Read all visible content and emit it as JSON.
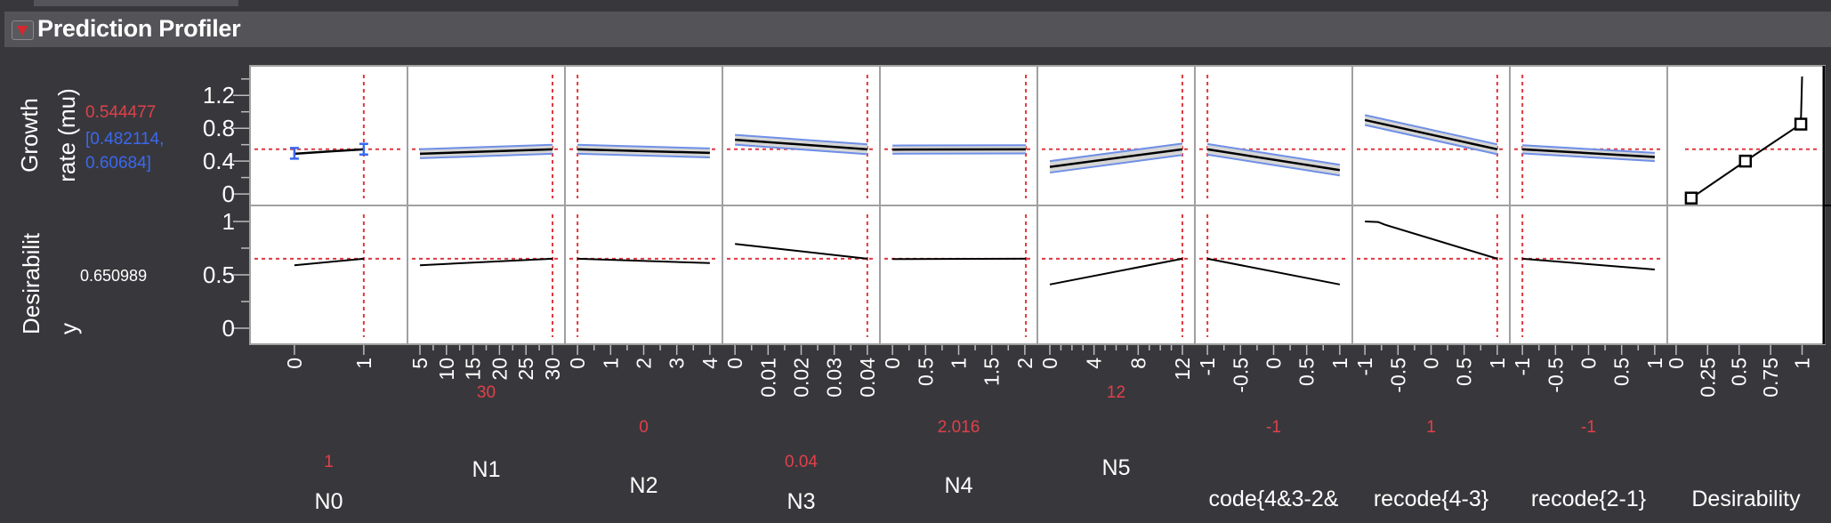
{
  "window": {
    "title": "Prediction Profiler"
  },
  "responses": [
    {
      "label_lines": [
        "Growth",
        "rate (mu)"
      ],
      "value": "0.544477",
      "ci_lines": [
        "[0.482114,",
        "0.60684]"
      ],
      "ylim": [
        -0.14,
        1.56
      ],
      "ticks": [
        0,
        0.4,
        0.8,
        1.2
      ],
      "tick_labels": [
        "0",
        "0.4",
        "0.8",
        "1.2"
      ],
      "minor_ticks": [
        0.2,
        0.6,
        1.0,
        1.4
      ],
      "current": 0.544477
    },
    {
      "label_lines": [
        "Desirabilit",
        "y"
      ],
      "value": "0.650989",
      "ylim": [
        -0.15,
        1.15
      ],
      "ticks": [
        0,
        0.5,
        1
      ],
      "tick_labels": [
        "0",
        "0.5",
        "1"
      ],
      "minor_ticks": [
        0.25,
        0.75
      ],
      "current": 0.650989
    }
  ],
  "colors": {
    "background": "#38383c",
    "header": "#545358",
    "current_line": "#e0383e",
    "ci_line": "#6f8fe8",
    "ci_band": "#d6d6d6",
    "value_red": "#e0404a",
    "ci_blue": "#3a68f0",
    "grid_border": "#a0a0a0"
  },
  "chart_data": {
    "type": "line",
    "title": "Prediction Profiler",
    "factors": [
      {
        "name": "N0",
        "current": 1,
        "current_label": "1",
        "xlim": [
          -0.64,
          1.63
        ],
        "ticks": [
          0,
          1
        ],
        "tick_labels": [
          "0",
          "1"
        ],
        "minor_ticks": [],
        "growth": [
          [
            0,
            0.49
          ],
          [
            1,
            0.544
          ]
        ],
        "error_bars": [
          [
            0,
            0.43,
            0.56
          ],
          [
            1,
            0.48,
            0.61
          ]
        ],
        "desirability": [
          [
            0,
            0.59
          ],
          [
            1,
            0.651
          ]
        ]
      },
      {
        "name": "N1",
        "current": 30,
        "current_label": "30",
        "xlim": [
          2.65,
          32.35
        ],
        "ticks": [
          5,
          10,
          15,
          20,
          25,
          30
        ],
        "tick_labels": [
          "5",
          "10",
          "15",
          "20",
          "25",
          "30"
        ],
        "minor_ticks": [
          7.5,
          12.5,
          17.5,
          22.5,
          27.5
        ],
        "growth": [
          [
            5,
            0.49
          ],
          [
            30,
            0.544
          ]
        ],
        "ci": 0.055,
        "desirability": [
          [
            5,
            0.59
          ],
          [
            30,
            0.651
          ]
        ]
      },
      {
        "name": "N2",
        "current": 0,
        "current_label": "0",
        "xlim": [
          -0.38,
          4.38
        ],
        "ticks": [
          0,
          1,
          2,
          3,
          4
        ],
        "tick_labels": [
          "0",
          "1",
          "2",
          "3",
          "4"
        ],
        "minor_ticks": [
          0.5,
          1.5,
          2.5,
          3.5
        ],
        "growth": [
          [
            0,
            0.544
          ],
          [
            4,
            0.5
          ]
        ],
        "ci": 0.055,
        "desirability": [
          [
            0,
            0.651
          ],
          [
            4,
            0.61
          ]
        ]
      },
      {
        "name": "N3",
        "current": 0.04,
        "current_label": "0.04",
        "xlim": [
          -0.0038,
          0.0438
        ],
        "ticks": [
          0,
          0.01,
          0.02,
          0.03,
          0.04
        ],
        "tick_labels": [
          "0",
          "0.01",
          "0.02",
          "0.03",
          "0.04"
        ],
        "minor_ticks": [
          0.005,
          0.015,
          0.025,
          0.035
        ],
        "growth": [
          [
            0,
            0.66
          ],
          [
            0.04,
            0.544
          ]
        ],
        "ci": 0.06,
        "desirability": [
          [
            0,
            0.79
          ],
          [
            0.04,
            0.651
          ]
        ]
      },
      {
        "name": "N4",
        "current": 2.016,
        "current_label": "2.016",
        "xlim": [
          -0.19,
          2.19
        ],
        "ticks": [
          0,
          0.5,
          1,
          1.5,
          2
        ],
        "tick_labels": [
          "0",
          "0.5",
          "1",
          "1.5",
          "2"
        ],
        "minor_ticks": [
          0.25,
          0.75,
          1.25,
          1.75
        ],
        "growth": [
          [
            0,
            0.54
          ],
          [
            2.016,
            0.544
          ]
        ],
        "ci": 0.05,
        "desirability": [
          [
            0,
            0.648
          ],
          [
            2.016,
            0.651
          ]
        ]
      },
      {
        "name": "N5",
        "current": 12,
        "current_label": "12",
        "xlim": [
          -1.13,
          13.13
        ],
        "ticks": [
          0,
          4,
          8,
          12
        ],
        "tick_labels": [
          "0",
          "4",
          "8",
          "12"
        ],
        "minor_ticks": [
          1,
          2,
          3,
          5,
          6,
          7,
          9,
          10,
          11
        ],
        "growth": [
          [
            0,
            0.33
          ],
          [
            12,
            0.544
          ]
        ],
        "ci": 0.07,
        "desirability": [
          [
            0,
            0.41
          ],
          [
            12,
            0.651
          ]
        ]
      },
      {
        "name": "code{4&3-2&",
        "current": -1,
        "current_label": "-1",
        "xlim": [
          -1.19,
          1.19
        ],
        "ticks": [
          -1,
          -0.5,
          0,
          0.5,
          1
        ],
        "tick_labels": [
          "-1",
          "-0.5",
          "0",
          "0.5",
          "1"
        ],
        "minor_ticks": [
          -0.75,
          -0.25,
          0.25,
          0.75
        ],
        "growth": [
          [
            -1,
            0.544
          ],
          [
            1,
            0.29
          ]
        ],
        "ci": 0.065,
        "desirability": [
          [
            -1,
            0.651
          ],
          [
            1,
            0.41
          ]
        ]
      },
      {
        "name": "recode{4-3}",
        "current": 1,
        "current_label": "1",
        "xlim": [
          -1.19,
          1.19
        ],
        "ticks": [
          -1,
          -0.5,
          0,
          0.5,
          1
        ],
        "tick_labels": [
          "-1",
          "-0.5",
          "0",
          "0.5",
          "1"
        ],
        "minor_ticks": [
          -0.75,
          -0.25,
          0.25,
          0.75
        ],
        "growth": [
          [
            -1,
            0.9
          ],
          [
            1,
            0.544
          ]
        ],
        "ci": 0.06,
        "desirability": [
          [
            -1,
            1.0
          ],
          [
            -0.8,
            0.995
          ],
          [
            -0.7,
            0.97
          ],
          [
            1,
            0.651
          ]
        ]
      },
      {
        "name": "recode{2-1}",
        "current": -1,
        "current_label": "-1",
        "xlim": [
          -1.19,
          1.19
        ],
        "ticks": [
          -1,
          -0.5,
          0,
          0.5,
          1
        ],
        "tick_labels": [
          "-1",
          "-0.5",
          "0",
          "0.5",
          "1"
        ],
        "minor_ticks": [
          -0.75,
          -0.25,
          0.25,
          0.75
        ],
        "growth": [
          [
            -1,
            0.544
          ],
          [
            1,
            0.45
          ]
        ],
        "ci": 0.05,
        "desirability": [
          [
            -1,
            0.651
          ],
          [
            1,
            0.55
          ]
        ]
      },
      {
        "name": "Desirability",
        "xlim": [
          -0.07,
          1.18
        ],
        "ticks": [
          0,
          0.25,
          0.5,
          0.75,
          1
        ],
        "tick_labels": [
          "0",
          "0.25",
          "0.5",
          "0.75",
          "1"
        ],
        "minor_ticks": [],
        "desirability_function": [
          [
            0.12,
            -0.05
          ],
          [
            0.55,
            0.4
          ],
          [
            0.99,
            0.85
          ],
          [
            1.0,
            1.43
          ]
        ],
        "markers": [
          [
            0.12,
            -0.05
          ],
          [
            0.55,
            0.4
          ],
          [
            0.99,
            0.85
          ]
        ]
      }
    ]
  }
}
